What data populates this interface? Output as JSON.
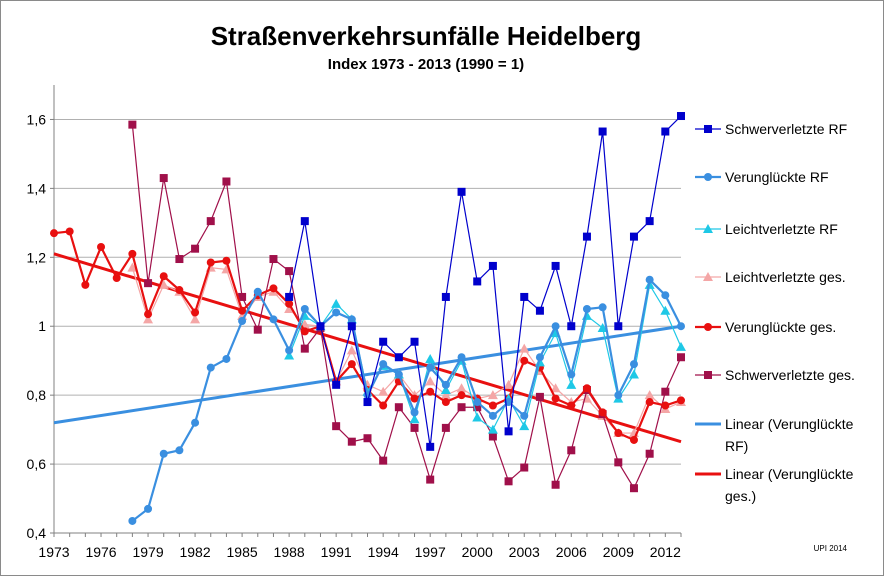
{
  "chart_data": {
    "type": "line",
    "title": "Straßenverkehrsunfälle Heidelberg",
    "subtitle": "Index 1973 - 2013 (1990 = 1)",
    "xlabel": "",
    "ylabel": "",
    "x_range": [
      1973,
      2013
    ],
    "ylim": [
      0.4,
      1.7
    ],
    "y_ticks": [
      "0,4",
      "0,6",
      "0,8",
      "1",
      "1,2",
      "1,4",
      "1,6"
    ],
    "x_ticks": [
      "1973",
      "1976",
      "1979",
      "1982",
      "1985",
      "1988",
      "1991",
      "1994",
      "1997",
      "2000",
      "2003",
      "2006",
      "2009",
      "2012"
    ],
    "grid": "horizontal",
    "legend_position": "right",
    "credit": "UPI 2014",
    "series": [
      {
        "name": "Schwerverletzte RF",
        "color": "#0000cc",
        "marker": "square",
        "points": [
          [
            1988,
            1.085
          ],
          [
            1989,
            1.305
          ],
          [
            1990,
            1.0
          ],
          [
            1991,
            0.83
          ],
          [
            1992,
            1.0
          ],
          [
            1993,
            0.78
          ],
          [
            1994,
            0.955
          ],
          [
            1995,
            0.91
          ],
          [
            1996,
            0.955
          ],
          [
            1997,
            0.65
          ],
          [
            1998,
            1.085
          ],
          [
            1999,
            1.39
          ],
          [
            2000,
            1.13
          ],
          [
            2001,
            1.175
          ],
          [
            2002,
            0.695
          ],
          [
            2003,
            1.085
          ],
          [
            2004,
            1.045
          ],
          [
            2005,
            1.175
          ],
          [
            2006,
            1.0
          ],
          [
            2007,
            1.26
          ],
          [
            2008,
            1.565
          ],
          [
            2009,
            1.0
          ],
          [
            2010,
            1.26
          ],
          [
            2011,
            1.305
          ],
          [
            2012,
            1.565
          ],
          [
            2013,
            1.61
          ]
        ]
      },
      {
        "name": "Verunglückte RF",
        "color": "#3a8fe0",
        "marker": "circle",
        "points": [
          [
            1978,
            0.435
          ],
          [
            1979,
            0.47
          ],
          [
            1980,
            0.63
          ],
          [
            1981,
            0.64
          ],
          [
            1982,
            0.72
          ],
          [
            1983,
            0.88
          ],
          [
            1984,
            0.905
          ],
          [
            1985,
            1.015
          ],
          [
            1986,
            1.1
          ],
          [
            1987,
            1.02
          ],
          [
            1988,
            0.93
          ],
          [
            1989,
            1.05
          ],
          [
            1990,
            1.0
          ],
          [
            1991,
            1.04
          ],
          [
            1992,
            1.02
          ],
          [
            1993,
            0.8
          ],
          [
            1994,
            0.89
          ],
          [
            1995,
            0.86
          ],
          [
            1996,
            0.75
          ],
          [
            1997,
            0.88
          ],
          [
            1998,
            0.83
          ],
          [
            1999,
            0.91
          ],
          [
            2000,
            0.78
          ],
          [
            2001,
            0.74
          ],
          [
            2002,
            0.78
          ],
          [
            2003,
            0.74
          ],
          [
            2004,
            0.91
          ],
          [
            2005,
            1.0
          ],
          [
            2006,
            0.86
          ],
          [
            2007,
            1.05
          ],
          [
            2008,
            1.055
          ],
          [
            2009,
            0.8
          ],
          [
            2010,
            0.89
          ],
          [
            2011,
            1.135
          ],
          [
            2012,
            1.09
          ],
          [
            2013,
            1.0
          ]
        ]
      },
      {
        "name": "Leichtverletzte RF",
        "color": "#1ec8e6",
        "marker": "triangle",
        "points": [
          [
            1988,
            0.915
          ],
          [
            1989,
            1.03
          ],
          [
            1990,
            1.0
          ],
          [
            1991,
            1.065
          ],
          [
            1992,
            1.02
          ],
          [
            1993,
            0.81
          ],
          [
            1994,
            0.885
          ],
          [
            1995,
            0.86
          ],
          [
            1996,
            0.73
          ],
          [
            1997,
            0.905
          ],
          [
            1998,
            0.815
          ],
          [
            1999,
            0.9
          ],
          [
            2000,
            0.735
          ],
          [
            2001,
            0.7
          ],
          [
            2002,
            0.79
          ],
          [
            2003,
            0.71
          ],
          [
            2004,
            0.895
          ],
          [
            2005,
            0.98
          ],
          [
            2006,
            0.83
          ],
          [
            2007,
            1.03
          ],
          [
            2008,
            0.995
          ],
          [
            2009,
            0.79
          ],
          [
            2010,
            0.86
          ],
          [
            2011,
            1.12
          ],
          [
            2012,
            1.045
          ],
          [
            2013,
            0.94
          ]
        ]
      },
      {
        "name": "Leichtverletzte ges.",
        "color": "#f4a6a6",
        "marker": "triangle",
        "points": [
          [
            1978,
            1.17
          ],
          [
            1979,
            1.02
          ],
          [
            1980,
            1.12
          ],
          [
            1981,
            1.1
          ],
          [
            1982,
            1.02
          ],
          [
            1983,
            1.17
          ],
          [
            1984,
            1.165
          ],
          [
            1985,
            1.03
          ],
          [
            1986,
            1.085
          ],
          [
            1987,
            1.1
          ],
          [
            1988,
            1.05
          ],
          [
            1989,
            1.005
          ],
          [
            1990,
            1.0
          ],
          [
            1991,
            0.84
          ],
          [
            1992,
            0.93
          ],
          [
            1993,
            0.83
          ],
          [
            1994,
            0.81
          ],
          [
            1995,
            0.86
          ],
          [
            1996,
            0.8
          ],
          [
            1997,
            0.84
          ],
          [
            1998,
            0.8
          ],
          [
            1999,
            0.82
          ],
          [
            2000,
            0.79
          ],
          [
            2001,
            0.8
          ],
          [
            2002,
            0.83
          ],
          [
            2003,
            0.935
          ],
          [
            2004,
            0.87
          ],
          [
            2005,
            0.82
          ],
          [
            2006,
            0.78
          ],
          [
            2007,
            0.79
          ],
          [
            2008,
            0.74
          ],
          [
            2009,
            0.69
          ],
          [
            2010,
            0.69
          ],
          [
            2011,
            0.8
          ],
          [
            2012,
            0.76
          ],
          [
            2013,
            0.78
          ]
        ]
      },
      {
        "name": "Verunglückte ges.",
        "color": "#e81010",
        "marker": "circle",
        "points": [
          [
            1973,
            1.27
          ],
          [
            1974,
            1.275
          ],
          [
            1975,
            1.12
          ],
          [
            1976,
            1.23
          ],
          [
            1977,
            1.14
          ],
          [
            1978,
            1.21
          ],
          [
            1979,
            1.035
          ],
          [
            1980,
            1.145
          ],
          [
            1981,
            1.105
          ],
          [
            1982,
            1.04
          ],
          [
            1983,
            1.185
          ],
          [
            1984,
            1.19
          ],
          [
            1985,
            1.045
          ],
          [
            1986,
            1.09
          ],
          [
            1987,
            1.11
          ],
          [
            1988,
            1.065
          ],
          [
            1989,
            0.985
          ],
          [
            1990,
            1.0
          ],
          [
            1991,
            0.84
          ],
          [
            1992,
            0.89
          ],
          [
            1993,
            0.815
          ],
          [
            1994,
            0.77
          ],
          [
            1995,
            0.84
          ],
          [
            1996,
            0.79
          ],
          [
            1997,
            0.81
          ],
          [
            1998,
            0.78
          ],
          [
            1999,
            0.8
          ],
          [
            2000,
            0.79
          ],
          [
            2001,
            0.77
          ],
          [
            2002,
            0.79
          ],
          [
            2003,
            0.9
          ],
          [
            2004,
            0.88
          ],
          [
            2005,
            0.79
          ],
          [
            2006,
            0.77
          ],
          [
            2007,
            0.82
          ],
          [
            2008,
            0.75
          ],
          [
            2009,
            0.69
          ],
          [
            2010,
            0.67
          ],
          [
            2011,
            0.78
          ],
          [
            2012,
            0.77
          ],
          [
            2013,
            0.785
          ]
        ]
      },
      {
        "name": "Schwerverletzte ges.",
        "color": "#a0104a",
        "marker": "square",
        "points": [
          [
            1978,
            1.585
          ],
          [
            1979,
            1.125
          ],
          [
            1980,
            1.43
          ],
          [
            1981,
            1.195
          ],
          [
            1982,
            1.225
          ],
          [
            1983,
            1.305
          ],
          [
            1984,
            1.42
          ],
          [
            1985,
            1.085
          ],
          [
            1986,
            0.99
          ],
          [
            1987,
            1.195
          ],
          [
            1988,
            1.16
          ],
          [
            1989,
            0.935
          ],
          [
            1990,
            0.995
          ],
          [
            1991,
            0.71
          ],
          [
            1992,
            0.665
          ],
          [
            1993,
            0.675
          ],
          [
            1994,
            0.61
          ],
          [
            1995,
            0.765
          ],
          [
            1996,
            0.705
          ],
          [
            1997,
            0.555
          ],
          [
            1998,
            0.705
          ],
          [
            1999,
            0.765
          ],
          [
            2000,
            0.765
          ],
          [
            2001,
            0.68
          ],
          [
            2002,
            0.55
          ],
          [
            2003,
            0.59
          ],
          [
            2004,
            0.795
          ],
          [
            2005,
            0.54
          ],
          [
            2006,
            0.64
          ],
          [
            2007,
            0.815
          ],
          [
            2008,
            0.745
          ],
          [
            2009,
            0.605
          ],
          [
            2010,
            0.53
          ],
          [
            2011,
            0.63
          ],
          [
            2012,
            0.81
          ],
          [
            2013,
            0.91
          ]
        ]
      },
      {
        "name": "Linear (Verunglückte RF)",
        "color": "#3a8fe0",
        "marker": "none",
        "trend": true,
        "points": [
          [
            1973,
            0.72
          ],
          [
            2013,
            1.0
          ]
        ]
      },
      {
        "name": "Linear (Verunglückte ges.)",
        "color": "#e81010",
        "marker": "none",
        "trend": true,
        "points": [
          [
            1973,
            1.21
          ],
          [
            2013,
            0.665
          ]
        ]
      }
    ],
    "legend": [
      {
        "series": 0,
        "lines": [
          "Schwerverletzte RF"
        ]
      },
      {
        "series": 1,
        "lines": [
          "Verunglückte RF"
        ]
      },
      {
        "series": 2,
        "lines": [
          "Leichtverletzte RF"
        ]
      },
      {
        "series": 3,
        "lines": [
          "Leichtverletzte ges."
        ]
      },
      {
        "series": 4,
        "lines": [
          "Verunglückte ges."
        ]
      },
      {
        "series": 5,
        "lines": [
          "Schwerverletzte ges."
        ]
      },
      {
        "series": 6,
        "lines": [
          "Linear (Verunglückte",
          "RF)"
        ]
      },
      {
        "series": 7,
        "lines": [
          "Linear (Verunglückte",
          "ges.)"
        ]
      }
    ]
  }
}
